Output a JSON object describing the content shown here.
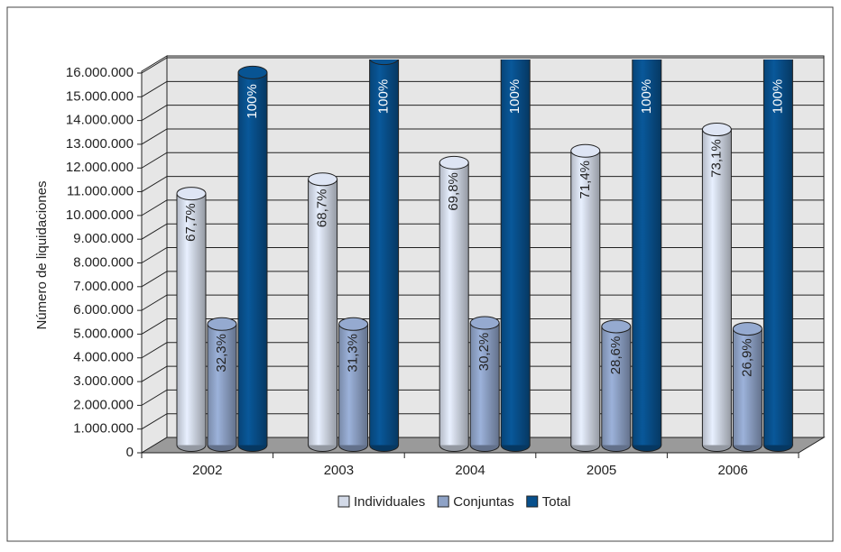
{
  "chart_data": {
    "type": "bar3d",
    "y_label": "Número de liquidaciones",
    "categories": [
      "2002",
      "2003",
      "2004",
      "2005",
      "2006"
    ],
    "series": [
      {
        "name": "Individuales",
        "color": "#d3dae8",
        "values": [
          10600000,
          11200000,
          11900000,
          12400000,
          13300000
        ],
        "shares": [
          "67,7%",
          "68,7%",
          "69,8%",
          "71,4%",
          "73,1%"
        ]
      },
      {
        "name": "Conjuntas",
        "color": "#8ea2c6",
        "values": [
          5100000,
          5100000,
          5150000,
          5000000,
          4900000
        ],
        "shares": [
          "32,3%",
          "31,3%",
          "30,2%",
          "28,6%",
          "26,9%"
        ]
      },
      {
        "name": "Total",
        "color": "#08508c",
        "values": [
          15700000,
          16300000,
          17050000,
          17400000,
          18200000
        ],
        "shares": [
          "100%",
          "100%",
          "100%",
          "100%",
          "100%"
        ]
      }
    ],
    "ylim": [
      0,
      16000000
    ],
    "yticks": [
      0,
      {
        "value": 1000000,
        "label": "1.000.000"
      },
      {
        "value": 2000000,
        "label": "2.000.000"
      },
      {
        "value": 3000000,
        "label": "3.000.000"
      },
      {
        "value": 4000000,
        "label": "4.000.000"
      },
      {
        "value": 5000000,
        "label": "5.000.000"
      },
      {
        "value": 6000000,
        "label": "6.000.000"
      },
      {
        "value": 7000000,
        "label": "7.000.000"
      },
      {
        "value": 8000000,
        "label": "8.000.000"
      },
      {
        "value": 9000000,
        "label": "9.000.000"
      },
      {
        "value": 10000000,
        "label": "10.000.000"
      },
      {
        "value": 11000000,
        "label": "11.000.000"
      },
      {
        "value": 12000000,
        "label": "12.000.000"
      },
      {
        "value": 13000000,
        "label": "13.000.000"
      },
      {
        "value": 14000000,
        "label": "14.000.000"
      },
      {
        "value": 15000000,
        "label": "15.000.000"
      },
      {
        "value": 16000000,
        "label": "16.000.000"
      }
    ],
    "grid": true
  }
}
